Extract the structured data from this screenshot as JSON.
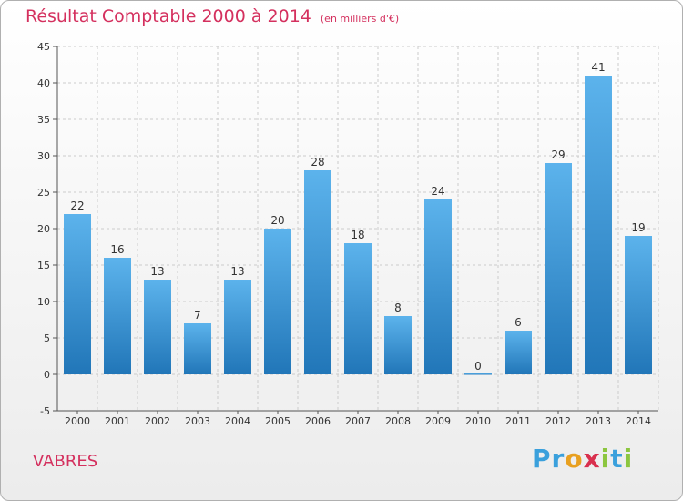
{
  "title": "Résultat Comptable 2000 à 2014",
  "unit": "(en milliers d'€)",
  "city": "VABRES",
  "logo": {
    "letters": [
      "P",
      "r",
      "o",
      "x",
      "i",
      "t",
      "i"
    ],
    "colors": [
      "#3aa0dc",
      "#3aa0dc",
      "#e8a020",
      "#d9304e",
      "#8cc63f",
      "#3aa0dc",
      "#8cc63f"
    ]
  },
  "colors": {
    "title": "#d4305e",
    "bar_light": "#5cb3ec",
    "bar_dark": "#2176b8",
    "grid": "#cccccc"
  },
  "chart_data": {
    "type": "bar",
    "categories": [
      "2000",
      "2001",
      "2002",
      "2003",
      "2004",
      "2005",
      "2006",
      "2007",
      "2008",
      "2009",
      "2010",
      "2011",
      "2012",
      "2013",
      "2014"
    ],
    "values": [
      22,
      16,
      13,
      7,
      13,
      20,
      28,
      18,
      8,
      24,
      0,
      6,
      29,
      41,
      19
    ],
    "ylim": [
      -5,
      45
    ],
    "yticks": [
      -5,
      0,
      5,
      10,
      15,
      20,
      25,
      30,
      35,
      40,
      45
    ],
    "grid": true,
    "legend": "none"
  }
}
